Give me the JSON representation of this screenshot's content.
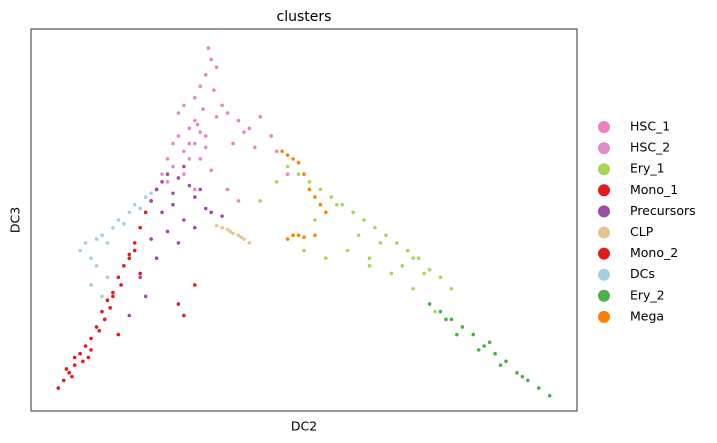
{
  "chart_data": {
    "type": "scatter",
    "title": "clusters",
    "x_label": "DC2",
    "y_label": "DC3",
    "xlim": [
      0,
      100
    ],
    "ylim": [
      0,
      100
    ],
    "grid": false,
    "legend": "right",
    "series": [
      {
        "name": "HSC_1",
        "color": "#f07fc0",
        "x": [
          30,
          31,
          32,
          33,
          34,
          32.5,
          31.5,
          33.5,
          30.5,
          32,
          34,
          36,
          38,
          40,
          42,
          44,
          37,
          39,
          41,
          29,
          31,
          33,
          35,
          45,
          47,
          30,
          28,
          36,
          38
        ],
        "y": [
          82,
          85,
          88,
          92,
          90,
          95,
          79,
          84,
          75,
          72,
          77,
          78,
          76,
          74,
          77,
          72,
          70,
          73,
          69,
          70,
          66,
          63,
          80,
          68,
          62,
          58,
          62,
          58,
          55
        ]
      },
      {
        "name": "HSC_2",
        "color": "#e08ec6",
        "x": [
          24,
          25,
          26,
          27,
          28,
          29,
          30,
          26,
          27,
          28,
          29,
          25,
          30,
          31,
          32
        ],
        "y": [
          62,
          66,
          70,
          72,
          68,
          74,
          76,
          64,
          78,
          80,
          66,
          60,
          70,
          73,
          69
        ]
      },
      {
        "name": "Ery_1",
        "color": "#a6d854",
        "x": [
          47,
          49,
          51,
          53,
          55,
          57,
          59,
          61,
          63,
          65,
          67,
          69,
          71,
          73,
          75,
          77,
          52,
          56,
          60,
          64,
          68,
          72,
          50,
          54,
          58,
          62,
          66,
          70,
          45,
          42,
          62,
          70,
          74
        ],
        "y": [
          64,
          62,
          60,
          58,
          56,
          54,
          52,
          50,
          48,
          46,
          44,
          42,
          40,
          37,
          35,
          32,
          50,
          54,
          46,
          44,
          38,
          36,
          42,
          40,
          42,
          40,
          36,
          32,
          60,
          55,
          38,
          40,
          26
        ]
      },
      {
        "name": "Mono_1",
        "color": "#e41a1c",
        "x": [
          5,
          6,
          7,
          8,
          7.5,
          9,
          10,
          11,
          10.5,
          12,
          13,
          12.5,
          14,
          15,
          14.5,
          16,
          17,
          16.5,
          18,
          19,
          20,
          19,
          21,
          22,
          23,
          6.5,
          9.5,
          13.5
        ],
        "y": [
          6,
          8,
          10,
          12,
          9,
          15,
          17,
          19,
          14,
          22,
          26,
          21,
          29,
          31,
          27,
          35,
          38,
          33,
          41,
          44,
          48,
          42,
          52,
          55,
          58,
          11,
          13,
          24
        ]
      },
      {
        "name": "Precursors",
        "color": "#984ea3",
        "x": [
          22,
          23,
          24,
          25,
          26,
          27,
          28,
          29,
          30,
          31,
          32,
          24,
          26,
          28,
          30,
          22,
          23,
          25,
          27,
          33,
          35,
          20,
          21,
          18
        ],
        "y": [
          55,
          58,
          60,
          62,
          57,
          61,
          64,
          59,
          56,
          58,
          53,
          52,
          54,
          50,
          48,
          45,
          40,
          47,
          44,
          52,
          51,
          35,
          30,
          25
        ]
      },
      {
        "name": "CLP",
        "color": "#e5c494",
        "x": [
          34,
          35,
          36,
          37,
          38,
          39,
          40,
          36.5,
          38.5
        ],
        "y": [
          48.5,
          48,
          47.5,
          46.5,
          46,
          45,
          44,
          47,
          45.5
        ]
      },
      {
        "name": "Mono_2",
        "color": "#e31a1c",
        "x": [
          8,
          11,
          15,
          18,
          27,
          30,
          28,
          16,
          20
        ],
        "y": [
          14,
          16,
          30,
          40,
          28,
          33,
          25,
          20,
          36
        ]
      },
      {
        "name": "DCs",
        "color": "#a6cee3",
        "x": [
          9,
          10,
          11,
          12,
          13,
          14,
          15,
          16,
          17,
          18,
          19,
          20,
          21,
          22,
          12,
          14,
          11,
          13
        ],
        "y": [
          42,
          44,
          40,
          45,
          46,
          44,
          48,
          50,
          49,
          52,
          54,
          53,
          56,
          57,
          38,
          35,
          33,
          30
        ]
      },
      {
        "name": "Ery_2",
        "color": "#4daf4a",
        "x": [
          73,
          75,
          77,
          79,
          81,
          83,
          85,
          87,
          89,
          91,
          93,
          95,
          78,
          82,
          86,
          90,
          76,
          84
        ],
        "y": [
          28,
          26,
          24,
          22,
          20,
          17,
          15,
          13,
          10,
          8,
          6,
          4,
          20,
          16,
          12,
          9,
          24,
          18
        ]
      },
      {
        "name": "Mega",
        "color": "#ff7f00",
        "x": [
          46,
          47,
          48,
          49,
          50,
          51,
          52,
          53,
          54,
          48,
          50,
          52,
          47,
          49
        ],
        "y": [
          68,
          67,
          66,
          65,
          62,
          58,
          56,
          54,
          52,
          46,
          45.5,
          46,
          45,
          46
        ]
      }
    ]
  }
}
